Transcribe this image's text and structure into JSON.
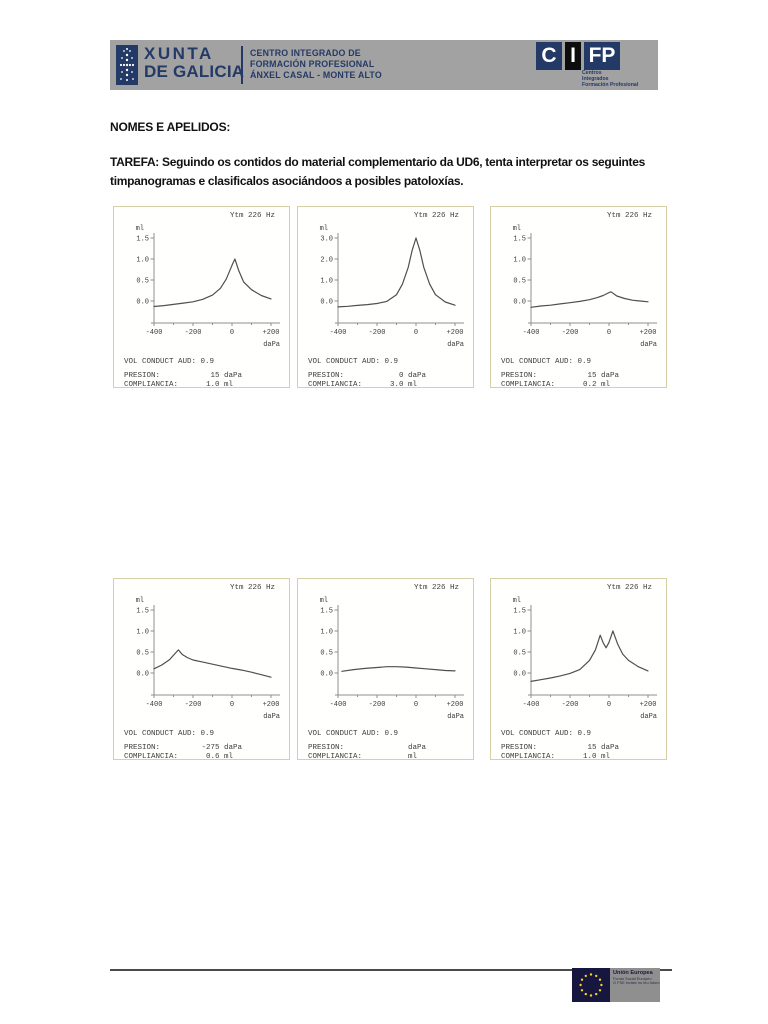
{
  "colors": {
    "header_bar": "#a2a2a2",
    "navy": "#243a66",
    "chart_border": "#d6cfa8",
    "curve": "#4f4f4f",
    "axis": "#8f8f8f",
    "footer_rule": "#4a4a4a",
    "eu_flag_bg": "#16163f",
    "eu_star": "#f5d020",
    "eu_box": "#8f8f8f"
  },
  "header": {
    "xunta_line1": "XUNTA",
    "xunta_line2": "DE GALICIA",
    "center_lines": [
      "CENTRO INTEGRADO DE",
      "FORMACIÓN PROFESIONAL",
      "ÁNXEL CASAL - MONTE ALTO"
    ],
    "cifp": {
      "letters": [
        "C",
        "I",
        "FP"
      ],
      "sub_lines": [
        "Centros",
        "Integrados",
        "Formación Profesional"
      ]
    }
  },
  "body": {
    "nomes_label": "NOMES E APELIDOS:",
    "tarefa_text": "TAREFA: Seguindo os contidos do material complementario da UD6, tenta interpretar os seguintes timpanogramas e clasificalos asociándoos a posibles patoloxías."
  },
  "tymp_labels": {
    "vol_label": "VOL CONDUCT AUD:",
    "presion_label": "PRESION:",
    "compliancia_label": "COMPLIANCIA:"
  },
  "chart_data": [
    {
      "type": "line",
      "title": "Ytm 226 Hz",
      "ylabel": "ml",
      "xlabel": "daPa",
      "yticks": [
        "1.5",
        "1.0",
        "0.5",
        "0.0"
      ],
      "xticks": [
        "-400",
        "-200",
        "0",
        "+200"
      ],
      "xlim": [
        -400,
        200
      ],
      "vol_value": "0.9",
      "presion_value": "15 daPa",
      "compliancia_value": "1.0 ml",
      "points": [
        [
          -400,
          -0.13
        ],
        [
          -350,
          -0.11
        ],
        [
          -300,
          -0.08
        ],
        [
          -250,
          -0.05
        ],
        [
          -200,
          -0.02
        ],
        [
          -150,
          0.04
        ],
        [
          -100,
          0.14
        ],
        [
          -60,
          0.3
        ],
        [
          -30,
          0.52
        ],
        [
          0,
          0.85
        ],
        [
          15,
          1.0
        ],
        [
          35,
          0.72
        ],
        [
          60,
          0.45
        ],
        [
          100,
          0.27
        ],
        [
          150,
          0.13
        ],
        [
          200,
          0.05
        ]
      ]
    },
    {
      "type": "line",
      "title": "Ytm 226 Hz",
      "ylabel": "ml",
      "xlabel": "daPa",
      "yticks": [
        "3.0",
        "2.0",
        "1.0",
        "0.0"
      ],
      "xticks": [
        "-400",
        "-200",
        "0",
        "+200"
      ],
      "xlim": [
        -400,
        200
      ],
      "vol_value": "0.9",
      "presion_value": "0 daPa",
      "compliancia_value": "3.0 ml",
      "points": [
        [
          -400,
          -0.28
        ],
        [
          -350,
          -0.25
        ],
        [
          -300,
          -0.21
        ],
        [
          -250,
          -0.17
        ],
        [
          -200,
          -0.12
        ],
        [
          -150,
          -0.02
        ],
        [
          -100,
          0.3
        ],
        [
          -70,
          0.8
        ],
        [
          -40,
          1.6
        ],
        [
          -20,
          2.4
        ],
        [
          0,
          3.0
        ],
        [
          20,
          2.4
        ],
        [
          40,
          1.6
        ],
        [
          70,
          0.8
        ],
        [
          100,
          0.3
        ],
        [
          150,
          -0.05
        ],
        [
          200,
          -0.2
        ]
      ]
    },
    {
      "type": "line",
      "title": "Ytm 226 Hz",
      "ylabel": "ml",
      "xlabel": "daPa",
      "yticks": [
        "1.5",
        "1.0",
        "0.5",
        "0.0"
      ],
      "xticks": [
        "-400",
        "-200",
        "0",
        "+200"
      ],
      "xlim": [
        -400,
        200
      ],
      "vol_value": "0.9",
      "presion_value": "15 daPa",
      "compliancia_value": "0.2 ml",
      "points": [
        [
          -400,
          -0.15
        ],
        [
          -350,
          -0.12
        ],
        [
          -300,
          -0.1
        ],
        [
          -250,
          -0.07
        ],
        [
          -200,
          -0.04
        ],
        [
          -150,
          -0.01
        ],
        [
          -100,
          0.03
        ],
        [
          -60,
          0.08
        ],
        [
          -30,
          0.13
        ],
        [
          0,
          0.2
        ],
        [
          10,
          0.22
        ],
        [
          40,
          0.12
        ],
        [
          80,
          0.06
        ],
        [
          120,
          0.02
        ],
        [
          160,
          0.0
        ],
        [
          200,
          -0.02
        ]
      ]
    },
    {
      "type": "line",
      "title": "Ytm 226 Hz",
      "ylabel": "ml",
      "xlabel": "daPa",
      "yticks": [
        "1.5",
        "1.0",
        "0.5",
        "0.0"
      ],
      "xticks": [
        "-400",
        "-200",
        "0",
        "+200"
      ],
      "xlim": [
        -400,
        200
      ],
      "vol_value": "0.9",
      "presion_value": "-275 daPa",
      "compliancia_value": "0.6 ml",
      "points": [
        [
          -400,
          0.1
        ],
        [
          -360,
          0.19
        ],
        [
          -320,
          0.32
        ],
        [
          -295,
          0.45
        ],
        [
          -275,
          0.55
        ],
        [
          -255,
          0.44
        ],
        [
          -230,
          0.37
        ],
        [
          -200,
          0.31
        ],
        [
          -150,
          0.26
        ],
        [
          -100,
          0.21
        ],
        [
          -50,
          0.16
        ],
        [
          0,
          0.11
        ],
        [
          50,
          0.07
        ],
        [
          100,
          0.02
        ],
        [
          150,
          -0.04
        ],
        [
          200,
          -0.1
        ]
      ]
    },
    {
      "type": "line",
      "title": "Ytm 226 Hz",
      "ylabel": "ml",
      "xlabel": "daPa",
      "yticks": [
        "1.5",
        "1.0",
        "0.5",
        "0.0"
      ],
      "xticks": [
        "-400",
        "-200",
        "0",
        "+200"
      ],
      "xlim": [
        -400,
        200
      ],
      "vol_value": "0.9",
      "presion_value": "daPa",
      "compliancia_value": "ml",
      "points": [
        [
          -380,
          0.04
        ],
        [
          -320,
          0.08
        ],
        [
          -260,
          0.11
        ],
        [
          -200,
          0.13
        ],
        [
          -150,
          0.15
        ],
        [
          -100,
          0.15
        ],
        [
          -50,
          0.14
        ],
        [
          0,
          0.12
        ],
        [
          50,
          0.1
        ],
        [
          100,
          0.08
        ],
        [
          150,
          0.06
        ],
        [
          200,
          0.05
        ]
      ]
    },
    {
      "type": "line",
      "title": "Ytm 226 Hz",
      "ylabel": "ml",
      "xlabel": "daPa",
      "yticks": [
        "1.5",
        "1.0",
        "0.5",
        "0.0"
      ],
      "xticks": [
        "-400",
        "-200",
        "0",
        "+200"
      ],
      "xlim": [
        -400,
        200
      ],
      "vol_value": "0.9",
      "presion_value": "15 daPa",
      "compliancia_value": "1.0 ml",
      "points": [
        [
          -400,
          -0.2
        ],
        [
          -350,
          -0.16
        ],
        [
          -300,
          -0.12
        ],
        [
          -250,
          -0.07
        ],
        [
          -200,
          -0.01
        ],
        [
          -150,
          0.08
        ],
        [
          -100,
          0.3
        ],
        [
          -70,
          0.55
        ],
        [
          -45,
          0.9
        ],
        [
          -30,
          0.72
        ],
        [
          -15,
          0.6
        ],
        [
          0,
          0.73
        ],
        [
          20,
          1.0
        ],
        [
          45,
          0.68
        ],
        [
          70,
          0.45
        ],
        [
          100,
          0.3
        ],
        [
          150,
          0.15
        ],
        [
          200,
          0.05
        ]
      ]
    }
  ],
  "footer": {
    "eu_title": "Unión Europea",
    "eu_line1": "Fondo Social Europeo",
    "eu_line2": "O FSE inviste no teu futuro"
  }
}
